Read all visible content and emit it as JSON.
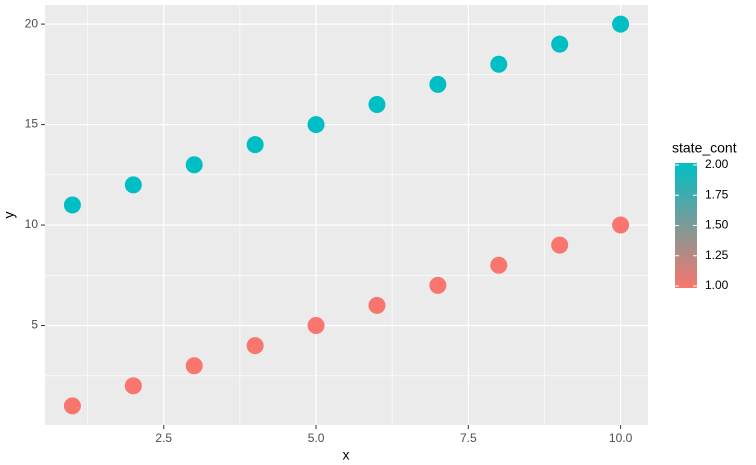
{
  "chart_data": {
    "type": "scatter",
    "x_label": "x",
    "y_label": "y",
    "x": [
      1,
      2,
      3,
      4,
      5,
      6,
      7,
      8,
      9,
      10,
      1,
      2,
      3,
      4,
      5,
      6,
      7,
      8,
      9,
      10
    ],
    "y": [
      1,
      2,
      3,
      4,
      5,
      6,
      7,
      8,
      9,
      10,
      11,
      12,
      13,
      14,
      15,
      16,
      17,
      18,
      19,
      20
    ],
    "state_cont": [
      1,
      1,
      1,
      1,
      1,
      1,
      1,
      1,
      1,
      1,
      2,
      2,
      2,
      2,
      2,
      2,
      2,
      2,
      2,
      2
    ],
    "xlim": [
      0.55,
      10.45
    ],
    "ylim": [
      0.05,
      20.95
    ],
    "xticks": [
      {
        "value": 2.5,
        "label": "2.5"
      },
      {
        "value": 5,
        "label": "5.0"
      },
      {
        "value": 7.5,
        "label": "7.5"
      },
      {
        "value": 10,
        "label": "10.0"
      }
    ],
    "yticks": [
      5,
      10,
      15,
      20
    ],
    "grid": true,
    "legend": {
      "title": "state_cont",
      "position": "right",
      "low_color": "#F8766D",
      "high_color": "#00BFC4",
      "limits": [
        1,
        2
      ],
      "ticks": [
        {
          "value": 1,
          "label": "1.00"
        },
        {
          "value": 1.25,
          "label": "1.25"
        },
        {
          "value": 1.5,
          "label": "1.50"
        },
        {
          "value": 1.75,
          "label": "1.75"
        },
        {
          "value": 2,
          "label": "2.00"
        }
      ]
    }
  }
}
